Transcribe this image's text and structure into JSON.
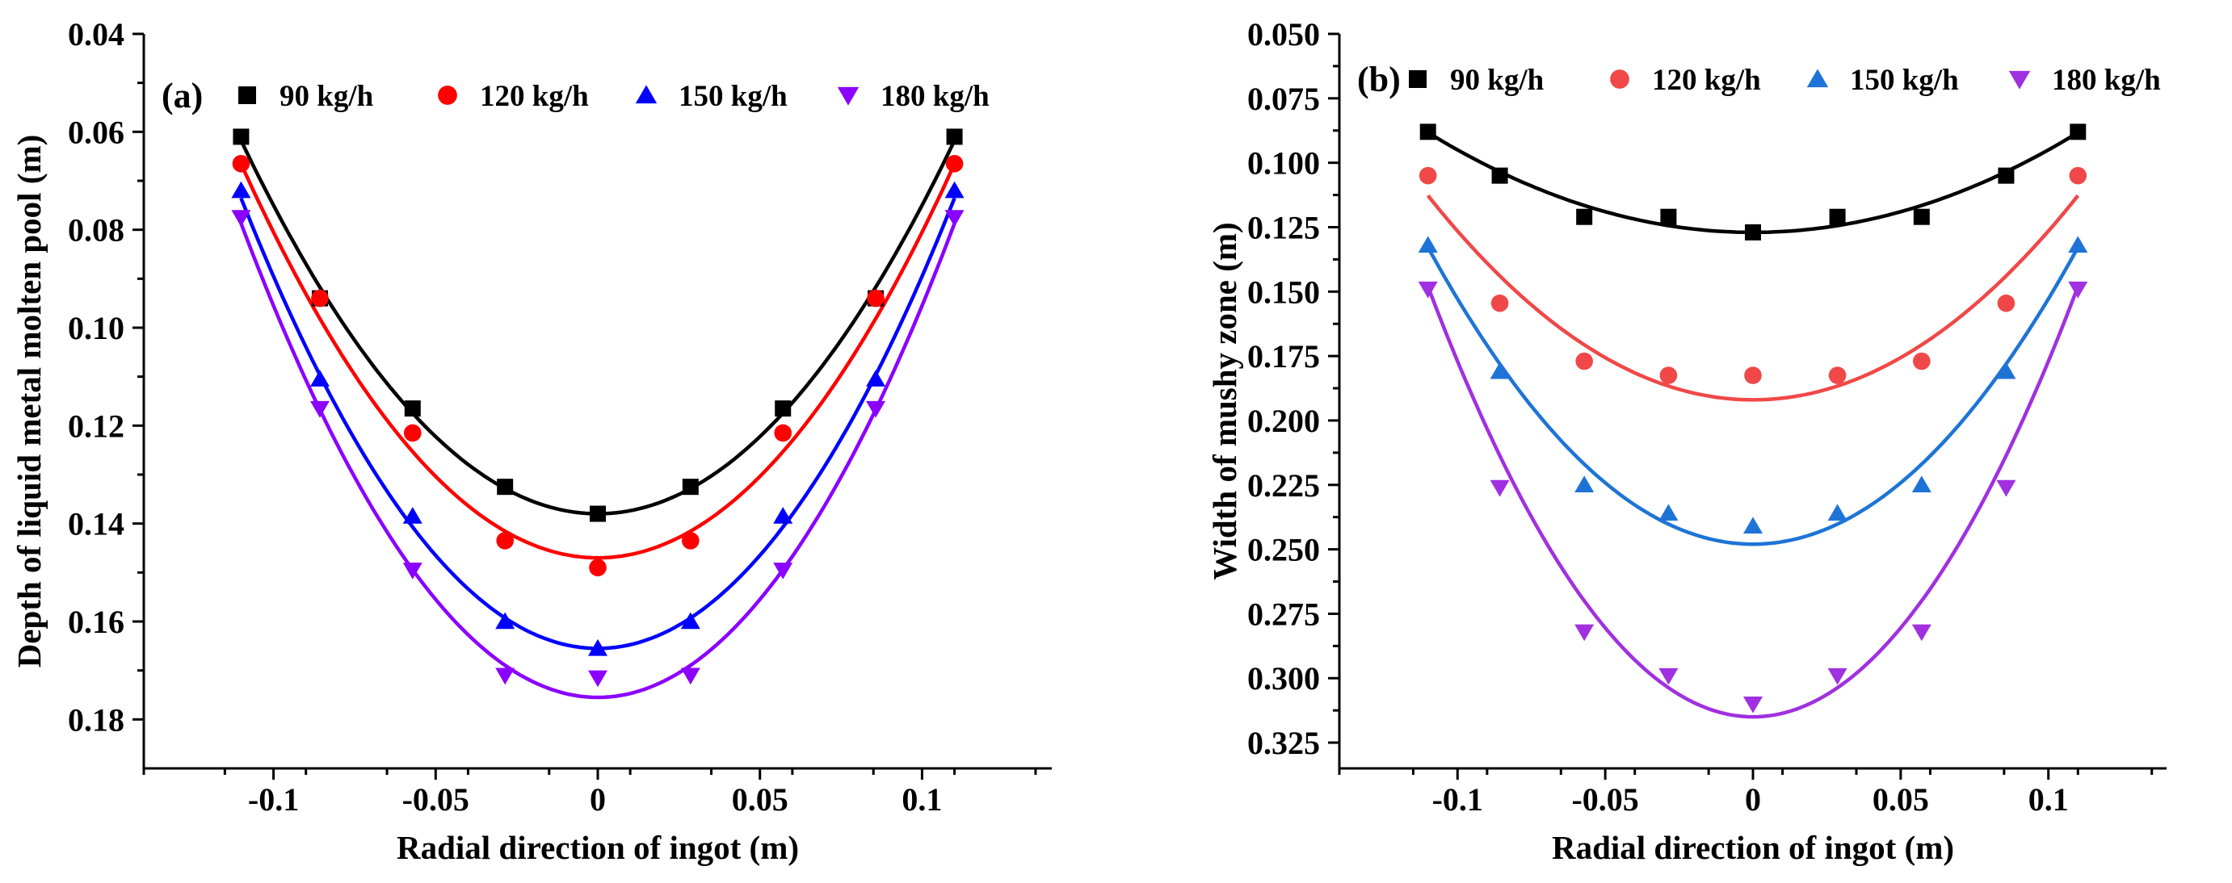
{
  "chart_data": [
    {
      "type": "scatter",
      "panel_label": "(a)",
      "xlabel": "Radial direction of ingot (m)",
      "ylabel": "Depth of liquid metal molten pool (m)",
      "xlim": [
        -0.14,
        0.14
      ],
      "ylim": [
        0.19,
        0.04
      ],
      "y_inverted": true,
      "xticks": [
        -0.1,
        -0.05,
        0,
        0.05,
        0.1
      ],
      "xtick_labels": [
        "-0.1",
        "-0.05",
        "0",
        "0.05",
        "0.1"
      ],
      "yticks": [
        0.04,
        0.06,
        0.08,
        0.1,
        0.12,
        0.14,
        0.16,
        0.18
      ],
      "ytick_labels": [
        "0.04",
        "0.06",
        "0.08",
        "0.10",
        "0.12",
        "0.14",
        "0.16",
        "0.18"
      ],
      "legend_position": "top",
      "x": [
        -0.11,
        -0.0857,
        -0.0571,
        -0.0286,
        0,
        0.0286,
        0.0571,
        0.0857,
        0.11
      ],
      "series": [
        {
          "name": "90 kg/h",
          "marker": "square",
          "color": "#000000",
          "values": [
            0.061,
            0.094,
            0.1165,
            0.1325,
            0.138,
            0.1325,
            0.1165,
            0.094,
            0.061
          ],
          "fit": [
            0.138,
            6.3
          ]
        },
        {
          "name": "120 kg/h",
          "marker": "circle",
          "color": "#ff0000",
          "values": [
            0.0665,
            0.094,
            0.1215,
            0.1435,
            0.149,
            0.1435,
            0.1215,
            0.094,
            0.0665
          ],
          "fit": [
            0.147,
            6.65
          ]
        },
        {
          "name": "150 kg/h",
          "marker": "triangle-up",
          "color": "#0000ff",
          "values": [
            0.072,
            0.1105,
            0.1385,
            0.16,
            0.1655,
            0.16,
            0.1385,
            0.1105,
            0.072
          ],
          "fit": [
            0.1655,
            7.6
          ]
        },
        {
          "name": "180 kg/h",
          "marker": "triangle-down",
          "color": "#8b00ff",
          "values": [
            0.0775,
            0.1165,
            0.1495,
            0.171,
            0.1715,
            0.171,
            0.1495,
            0.1165,
            0.0775
          ],
          "fit": [
            0.1755,
            8.0
          ]
        }
      ]
    },
    {
      "type": "scatter",
      "panel_label": "(b)",
      "xlabel": "Radial direction of ingot (m)",
      "ylabel": "Width of mushy zone (m)",
      "xlim": [
        -0.14,
        0.14
      ],
      "ylim": [
        0.335,
        0.05
      ],
      "y_inverted": true,
      "xticks": [
        -0.1,
        -0.05,
        0,
        0.05,
        0.1
      ],
      "xtick_labels": [
        "-0.1",
        "-0.05",
        "0",
        "0.05",
        "0.1"
      ],
      "yticks": [
        0.05,
        0.075,
        0.1,
        0.125,
        0.15,
        0.175,
        0.2,
        0.225,
        0.25,
        0.275,
        0.3,
        0.325
      ],
      "ytick_labels": [
        "0.050",
        "0.075",
        "0.100",
        "0.125",
        "0.150",
        "0.175",
        "0.200",
        "0.225",
        "0.250",
        "0.275",
        "0.300",
        "0.325"
      ],
      "legend_position": "top",
      "x": [
        -0.11,
        -0.0857,
        -0.0571,
        -0.0286,
        0,
        0.0286,
        0.0571,
        0.0857,
        0.11
      ],
      "series": [
        {
          "name": "90 kg/h",
          "marker": "square",
          "color": "#000000",
          "values": [
            0.088,
            0.105,
            0.121,
            0.121,
            0.127,
            0.121,
            0.121,
            0.105,
            0.088
          ],
          "fit": [
            0.127,
            3.2
          ]
        },
        {
          "name": "120 kg/h",
          "marker": "circle",
          "color": "#f04848",
          "values": [
            0.105,
            0.1545,
            0.177,
            0.1825,
            0.1825,
            0.1825,
            0.177,
            0.1545,
            0.105
          ],
          "fit": [
            0.192,
            6.55
          ]
        },
        {
          "name": "150 kg/h",
          "marker": "triangle-up",
          "color": "#1e74d6",
          "values": [
            0.132,
            0.181,
            0.225,
            0.236,
            0.241,
            0.236,
            0.225,
            0.181,
            0.132
          ],
          "fit": [
            0.248,
            9.52
          ]
        },
        {
          "name": "180 kg/h",
          "marker": "triangle-down",
          "color": "#a030e0",
          "values": [
            0.149,
            0.226,
            0.282,
            0.299,
            0.31,
            0.299,
            0.282,
            0.226,
            0.149
          ],
          "fit": [
            0.315,
            13.8
          ]
        }
      ]
    }
  ]
}
